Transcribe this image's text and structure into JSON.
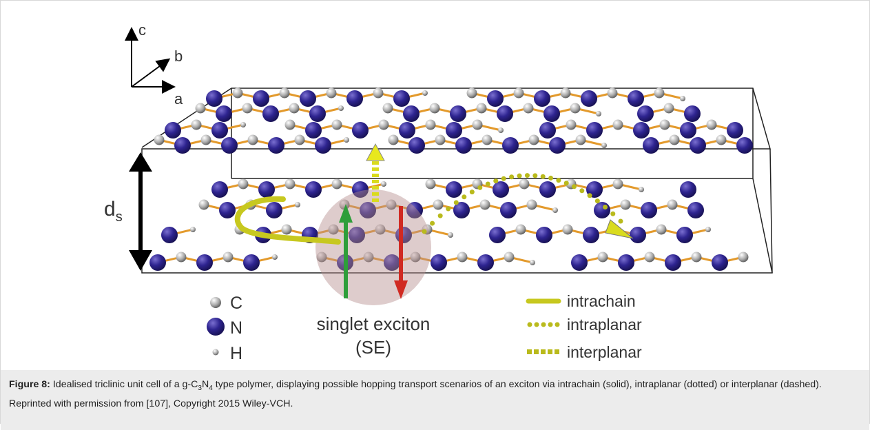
{
  "figure": {
    "axes": {
      "c": "c",
      "b": "b",
      "a": "a"
    },
    "spacing": {
      "label": "d",
      "subscript": "s"
    },
    "legend_atoms": [
      {
        "symbol": "C"
      },
      {
        "symbol": "N"
      },
      {
        "symbol": "H"
      }
    ],
    "exciton": {
      "line1": "singlet exciton",
      "line2": "(SE)"
    },
    "legend_transport": [
      "intrachain",
      "intraplanar",
      "interplanar"
    ]
  },
  "caption": {
    "label": "Figure 8:",
    "parts": [
      " Idealised triclinic unit cell of a g-C",
      "3",
      "N",
      "4",
      " type polymer, displaying possible hopping transport scenarios of an exciton via intrachain (solid), intraplanar (dotted) or interplanar (dashed). Reprinted with permission from [107], Copyright 2015 Wiley-VCH."
    ]
  }
}
